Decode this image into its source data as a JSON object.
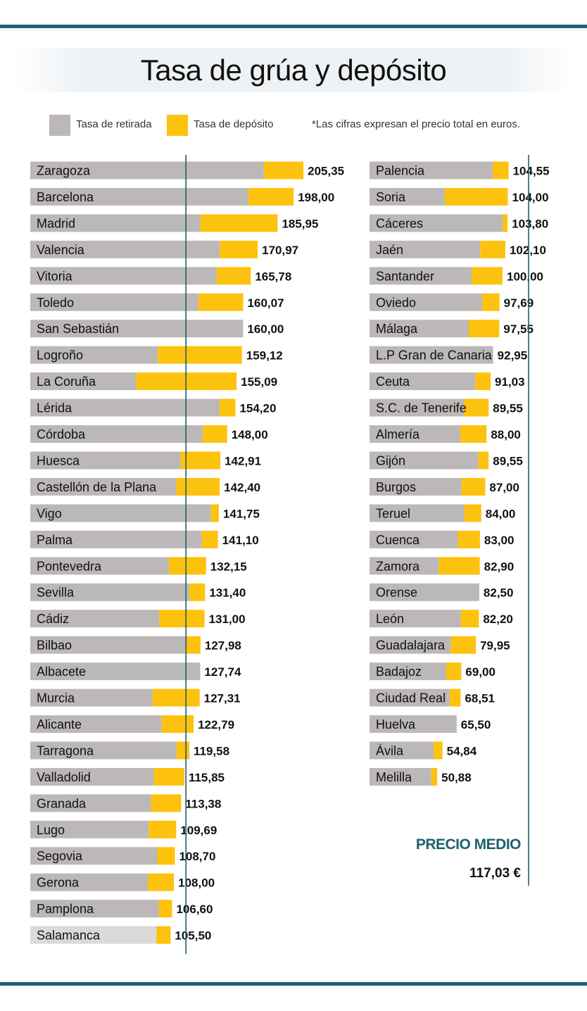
{
  "title": "Tasa de grúa y depósito",
  "legend": {
    "retirada": "Tasa de retirada",
    "deposito": "Tasa de depósito",
    "note": "*Las cifras expresan el precio total  en euros."
  },
  "average": {
    "label": "PRECIO MEDIO",
    "value": "117,03 €"
  },
  "colors": {
    "retirada": "#bcb8b7",
    "deposito": "#fdc20e",
    "rule": "#1e5f70"
  },
  "chart_data": {
    "type": "bar",
    "orientation": "horizontal",
    "stacked": true,
    "unit": "€",
    "series": [
      {
        "name": "Tasa de retirada",
        "color": "#bcb8b7"
      },
      {
        "name": "Tasa de depósito",
        "color": "#fdc20e"
      }
    ],
    "columns": [
      [
        {
          "city": "Zaragoza",
          "total": 205.35,
          "retirada": 175.6,
          "label": "205,35"
        },
        {
          "city": "Barcelona",
          "total": 198.0,
          "retirada": 163.9,
          "label": "198,00"
        },
        {
          "city": "Madrid",
          "total": 185.95,
          "retirada": 127.9,
          "label": "185,95"
        },
        {
          "city": "Valencia",
          "total": 170.97,
          "retirada": 142.4,
          "label": "170,97"
        },
        {
          "city": "Vitoria",
          "total": 165.78,
          "retirada": 140.1,
          "label": "165,78"
        },
        {
          "city": "Toledo",
          "total": 160.07,
          "retirada": 126.3,
          "label": "160,07"
        },
        {
          "city": "San Sebastián",
          "total": 160.0,
          "retirada": 160.0,
          "label": "160,00"
        },
        {
          "city": "Logroño",
          "total": 159.12,
          "retirada": 95.9,
          "label": "159,12"
        },
        {
          "city": "La Coruña",
          "total": 155.09,
          "retirada": 79.6,
          "label": "155,09"
        },
        {
          "city": "Lérida",
          "total": 154.2,
          "retirada": 142.4,
          "label": "154,20"
        },
        {
          "city": "Córdoba",
          "total": 148.0,
          "retirada": 129.7,
          "label": "148,00"
        },
        {
          "city": "Huesca",
          "total": 142.91,
          "retirada": 113.0,
          "label": "142,91"
        },
        {
          "city": "Castellón de la Plana",
          "total": 142.4,
          "retirada": 109.8,
          "label": "142,40"
        },
        {
          "city": "Vigo",
          "total": 141.75,
          "retirada": 135.8,
          "label": "141,75"
        },
        {
          "city": "Palma",
          "total": 141.1,
          "retirada": 129.0,
          "label": "141,10"
        },
        {
          "city": "Pontevedra",
          "total": 132.15,
          "retirada": 104.2,
          "label": "132,15"
        },
        {
          "city": "Sevilla",
          "total": 131.4,
          "retirada": 119.6,
          "label": "131,40"
        },
        {
          "city": "Cádiz",
          "total": 131.0,
          "retirada": 97.0,
          "label": "131,00"
        },
        {
          "city": "Bilbao",
          "total": 127.98,
          "retirada": 116.6,
          "label": "127,98"
        },
        {
          "city": "Albacete",
          "total": 127.74,
          "retirada": 127.74,
          "label": "127,74"
        },
        {
          "city": "Murcia",
          "total": 127.31,
          "retirada": 92.0,
          "label": "127,31"
        },
        {
          "city": "Alicante",
          "total": 122.79,
          "retirada": 98.8,
          "label": "122,79"
        },
        {
          "city": "Tarragona",
          "total": 119.58,
          "retirada": 110.0,
          "label": "119,58"
        },
        {
          "city": "Valladolid",
          "total": 115.85,
          "retirada": 93.0,
          "label": "115,85"
        },
        {
          "city": "Granada",
          "total": 113.38,
          "retirada": 90.7,
          "label": "113,38"
        },
        {
          "city": "Lugo",
          "total": 109.69,
          "retirada": 89.0,
          "label": "109,69"
        },
        {
          "city": "Segovia",
          "total": 108.7,
          "retirada": 95.5,
          "label": "108,70"
        },
        {
          "city": "Gerona",
          "total": 108.0,
          "retirada": 88.4,
          "label": "108,00"
        },
        {
          "city": "Pamplona",
          "total": 106.6,
          "retirada": 96.6,
          "label": "106,60"
        },
        {
          "city": "Salamanca",
          "total": 105.5,
          "retirada": 94.8,
          "label": "105,50"
        }
      ],
      [
        {
          "city": "Palencia",
          "total": 104.55,
          "retirada": 92.6,
          "label": "104,55"
        },
        {
          "city": "Soria",
          "total": 104.0,
          "retirada": 56.6,
          "label": "104,00"
        },
        {
          "city": "Cáceres",
          "total": 103.8,
          "retirada": 100.1,
          "label": "103,80"
        },
        {
          "city": "Jaén",
          "total": 102.1,
          "retirada": 83.2,
          "label": "102,10"
        },
        {
          "city": "Santander",
          "total": 100.0,
          "retirada": 76.8,
          "label": "100,00"
        },
        {
          "city": "Oviedo",
          "total": 97.69,
          "retirada": 84.7,
          "label": "97,69"
        },
        {
          "city": "Málaga",
          "total": 97.55,
          "retirada": 74.6,
          "label": "97,55"
        },
        {
          "city": "L.P Gran de Canaria",
          "total": 92.95,
          "retirada": 92.95,
          "label": "92,95"
        },
        {
          "city": "Ceuta",
          "total": 91.03,
          "retirada": 79.7,
          "label": "91,03"
        },
        {
          "city": "S.C. de Tenerife",
          "total": 89.55,
          "retirada": 70.9,
          "label": "89,55"
        },
        {
          "city": "Almería",
          "total": 88.0,
          "retirada": 68.2,
          "label": "88,00"
        },
        {
          "city": "Gijón",
          "total": 89.55,
          "retirada": 81.8,
          "label": "89,55"
        },
        {
          "city": "Burgos",
          "total": 87.0,
          "retirada": 69.1,
          "label": "87,00"
        },
        {
          "city": "Teruel",
          "total": 84.0,
          "retirada": 71.4,
          "label": "84,00"
        },
        {
          "city": "Cuenca",
          "total": 83.0,
          "retirada": 66.4,
          "label": "83,00"
        },
        {
          "city": "Zamora",
          "total": 82.9,
          "retirada": 52.0,
          "label": "82,90"
        },
        {
          "city": "Orense",
          "total": 82.5,
          "retirada": 82.5,
          "label": "82,50"
        },
        {
          "city": "León",
          "total": 82.2,
          "retirada": 68.6,
          "label": "82,20"
        },
        {
          "city": "Guadalajara",
          "total": 79.95,
          "retirada": 61.2,
          "label": "79,95"
        },
        {
          "city": "Badajoz",
          "total": 69.0,
          "retirada": 57.7,
          "label": "69,00"
        },
        {
          "city": "Ciudad Real",
          "total": 68.51,
          "retirada": 60.2,
          "label": "68,51"
        },
        {
          "city": "Huelva",
          "total": 65.5,
          "retirada": 65.5,
          "label": "65,50"
        },
        {
          "city": "Ávila",
          "total": 54.84,
          "retirada": 48.2,
          "label": "54,84"
        },
        {
          "city": "Melilla",
          "total": 50.88,
          "retirada": 46.4,
          "label": "50,88"
        }
      ]
    ],
    "reference_line": 117.03
  }
}
